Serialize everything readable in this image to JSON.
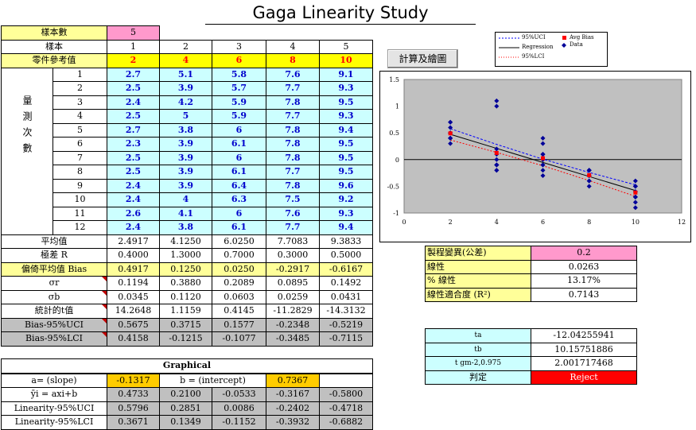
{
  "title": "Gaga Linearity Study",
  "sample_count_label": "樣本數",
  "sample_count_value": "5",
  "sample_label": "樣本",
  "sample_nums": [
    "1",
    "2",
    "3",
    "4",
    "5"
  ],
  "ref_label": "零件參考值",
  "ref_values": [
    "2",
    "4",
    "6",
    "8",
    "10"
  ],
  "measure_label": "量測次數",
  "trials": [
    {
      "n": "1",
      "v": [
        "2.7",
        "5.1",
        "5.8",
        "7.6",
        "9.1"
      ]
    },
    {
      "n": "2",
      "v": [
        "2.5",
        "3.9",
        "5.7",
        "7.7",
        "9.3"
      ]
    },
    {
      "n": "3",
      "v": [
        "2.4",
        "4.2",
        "5.9",
        "7.8",
        "9.5"
      ]
    },
    {
      "n": "4",
      "v": [
        "2.5",
        "5",
        "5.9",
        "7.7",
        "9.3"
      ]
    },
    {
      "n": "5",
      "v": [
        "2.7",
        "3.8",
        "6",
        "7.8",
        "9.4"
      ]
    },
    {
      "n": "6",
      "v": [
        "2.3",
        "3.9",
        "6.1",
        "7.8",
        "9.5"
      ]
    },
    {
      "n": "7",
      "v": [
        "2.5",
        "3.9",
        "6",
        "7.8",
        "9.5"
      ]
    },
    {
      "n": "8",
      "v": [
        "2.5",
        "3.9",
        "6.1",
        "7.7",
        "9.5"
      ]
    },
    {
      "n": "9",
      "v": [
        "2.4",
        "3.9",
        "6.4",
        "7.8",
        "9.6"
      ]
    },
    {
      "n": "10",
      "v": [
        "2.4",
        "4",
        "6.3",
        "7.5",
        "9.2"
      ]
    },
    {
      "n": "11",
      "v": [
        "2.6",
        "4.1",
        "6",
        "7.6",
        "9.3"
      ]
    },
    {
      "n": "12",
      "v": [
        "2.4",
        "3.8",
        "6.1",
        "7.7",
        "9.4"
      ]
    }
  ],
  "stats": [
    {
      "label": "平均值",
      "cls": "",
      "tri": false,
      "v": [
        "2.4917",
        "4.1250",
        "6.0250",
        "7.7083",
        "9.3833"
      ]
    },
    {
      "label": "極差 R",
      "cls": "",
      "tri": false,
      "v": [
        "0.4000",
        "1.3000",
        "0.7000",
        "0.3000",
        "0.5000"
      ]
    },
    {
      "label": "偏倚平均值 Bias",
      "cls": "yel",
      "tri": false,
      "v": [
        "0.4917",
        "0.1250",
        "0.0250",
        "-0.2917",
        "-0.6167"
      ]
    },
    {
      "label": "σr",
      "cls": "",
      "tri": true,
      "v": [
        "0.1194",
        "0.3880",
        "0.2089",
        "0.0895",
        "0.1492"
      ]
    },
    {
      "label": "σb",
      "cls": "",
      "tri": true,
      "v": [
        "0.0345",
        "0.1120",
        "0.0603",
        "0.0259",
        "0.0431"
      ]
    },
    {
      "label": "統計的t值",
      "cls": "",
      "tri": true,
      "v": [
        "14.2648",
        "1.1159",
        "0.4145",
        "-11.2829",
        "-14.3132"
      ]
    },
    {
      "label": "Bias-95%UCI",
      "cls": "gray",
      "tri": true,
      "v": [
        "0.5675",
        "0.3715",
        "0.1577",
        "-0.2348",
        "-0.5219"
      ]
    },
    {
      "label": "Bias-95%LCI",
      "cls": "gray",
      "tri": true,
      "v": [
        "0.4158",
        "-0.1215",
        "-0.1077",
        "-0.3485",
        "-0.7115"
      ]
    }
  ],
  "graphical": {
    "header": "Graphical",
    "a_label": "a= (slope)",
    "a_value": "-0.1317",
    "b_label": "b = (intercept)",
    "b_value": "0.7367",
    "rows": [
      {
        "label": "ȳi = axi+b",
        "v": [
          "0.4733",
          "0.2100",
          "-0.0533",
          "-0.3167",
          "-0.5800"
        ]
      },
      {
        "label": "Linearity-95%UCI",
        "v": [
          "0.5796",
          "0.2851",
          "0.0086",
          "-0.2402",
          "-0.4718"
        ]
      },
      {
        "label": "Linearity-95%LCI",
        "v": [
          "0.3671",
          "0.1349",
          "-0.1152",
          "-0.3932",
          "-0.6882"
        ]
      }
    ]
  },
  "button_label": "計算及繪圖",
  "legend": {
    "ucl": "95%UCI",
    "reg": "Regression",
    "lcl": "95%LCI",
    "avg": "Avg Bias",
    "data": "Data"
  },
  "summary": [
    {
      "label": "製程變異(公差)",
      "value": "0.2",
      "vcls": "pink"
    },
    {
      "label": "線性",
      "value": "0.0263",
      "vcls": ""
    },
    {
      "label": "% 線性",
      "value": "13.17%",
      "vcls": ""
    },
    {
      "label": "線性適合度 (R²)",
      "value": "0.7143",
      "vcls": ""
    }
  ],
  "ttest": [
    {
      "label": "ta",
      "value": "-12.04255941"
    },
    {
      "label": "tb",
      "value": "10.15751886"
    },
    {
      "label": "t gm-2,0.975",
      "value": "2.001717468"
    }
  ],
  "verdict_label": "判定",
  "verdict_value": "Reject",
  "colors": {
    "data": "#000099",
    "avg": "#ff0000",
    "reg": "#000000",
    "ucl": "#0000ff",
    "lcl": "#ff0000",
    "plot_bg": "#c0c0c0"
  },
  "chart_data": {
    "type": "scatter",
    "xlim": [
      0,
      12
    ],
    "ylim": [
      -1,
      1.5
    ],
    "xticks": [
      "0",
      "2",
      "4",
      "6",
      "8",
      "10",
      "12"
    ],
    "yticks": [
      "1.5",
      "1",
      "0.5",
      "0",
      "-0.5",
      "-1"
    ],
    "points_x": [
      2,
      4,
      6,
      8,
      10
    ],
    "data_bias": [
      [
        0.7,
        0.5,
        0.4,
        0.5,
        0.7,
        0.3,
        0.5,
        0.5,
        0.4,
        0.4,
        0.6,
        0.4
      ],
      [
        1.1,
        -0.1,
        0.2,
        1.0,
        -0.2,
        -0.1,
        -0.1,
        -0.1,
        -0.1,
        0.0,
        0.1,
        -0.2
      ],
      [
        -0.2,
        -0.3,
        -0.1,
        -0.1,
        0.0,
        0.1,
        0.0,
        0.1,
        0.4,
        0.3,
        0.0,
        0.1
      ],
      [
        -0.4,
        -0.3,
        -0.2,
        -0.3,
        -0.2,
        -0.2,
        -0.2,
        -0.3,
        -0.2,
        -0.5,
        -0.4,
        -0.3
      ],
      [
        -0.9,
        -0.7,
        -0.5,
        -0.7,
        -0.6,
        -0.5,
        -0.5,
        -0.5,
        -0.4,
        -0.8,
        -0.7,
        -0.6
      ]
    ],
    "avg_bias": [
      0.4917,
      0.125,
      0.025,
      -0.2917,
      -0.6167
    ],
    "regression": [
      0.4733,
      0.21,
      -0.0533,
      -0.3167,
      -0.58
    ],
    "ucl": [
      0.5796,
      0.2851,
      0.0086,
      -0.2402,
      -0.4718
    ],
    "lcl": [
      0.3671,
      0.1349,
      -0.1152,
      -0.3932,
      -0.6882
    ]
  }
}
